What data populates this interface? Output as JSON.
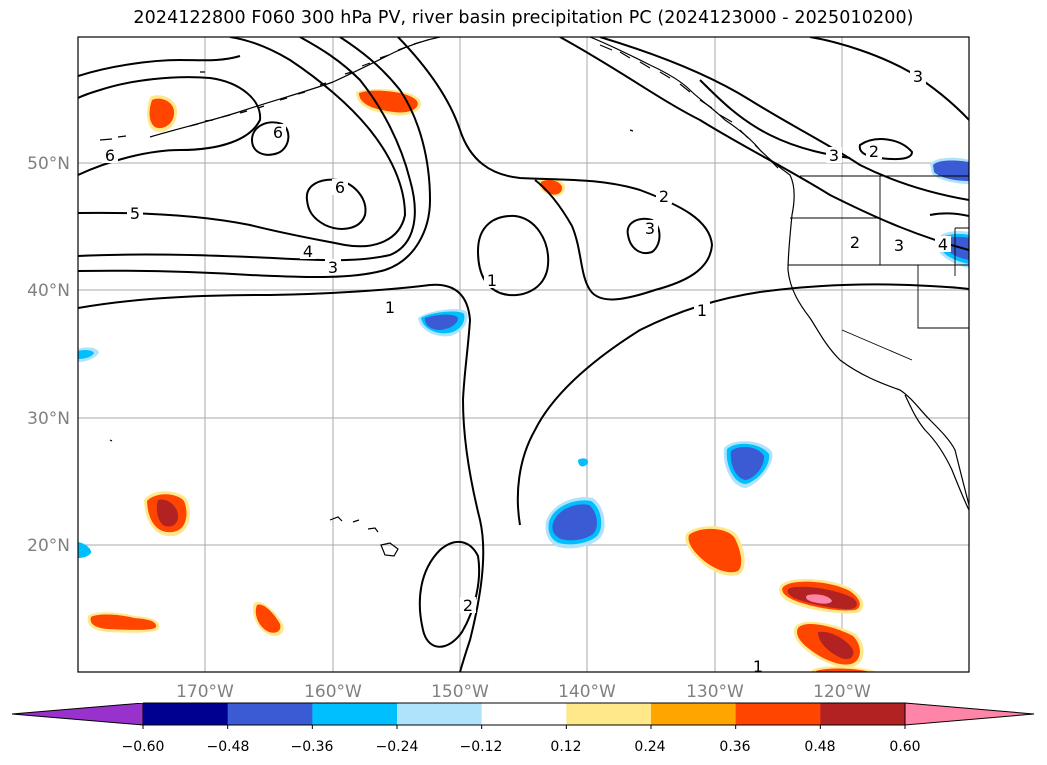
{
  "title": "2024122800 F060 300 hPa PV, river basin precipitation PC (2024123000 - 2025010200)",
  "lat_labels": [
    "50°N",
    "40°N",
    "30°N",
    "20°N"
  ],
  "lon_labels": [
    "170°W",
    "160°W",
    "150°W",
    "140°W",
    "130°W",
    "120°W"
  ],
  "contour_labels": [
    "6",
    "6",
    "6",
    "5",
    "4",
    "3",
    "1",
    "1",
    "2",
    "3",
    "1",
    "2",
    "2",
    "3",
    "3",
    "2",
    "4",
    "3",
    "1"
  ],
  "colorbar": {
    "ticks": [
      "−0.60",
      "−0.48",
      "−0.36",
      "−0.24",
      "−0.12",
      "0.12",
      "0.24",
      "0.36",
      "0.48",
      "0.60"
    ],
    "colors": {
      "under": "#9932cc",
      "bins": [
        "#000090",
        "#3a5bd4",
        "#00bfff",
        "#afe3fb",
        "#ffffff",
        "#ffe88a",
        "#ffa500",
        "#ff4500",
        "#b22222"
      ],
      "over": "#ff85a8"
    }
  }
}
